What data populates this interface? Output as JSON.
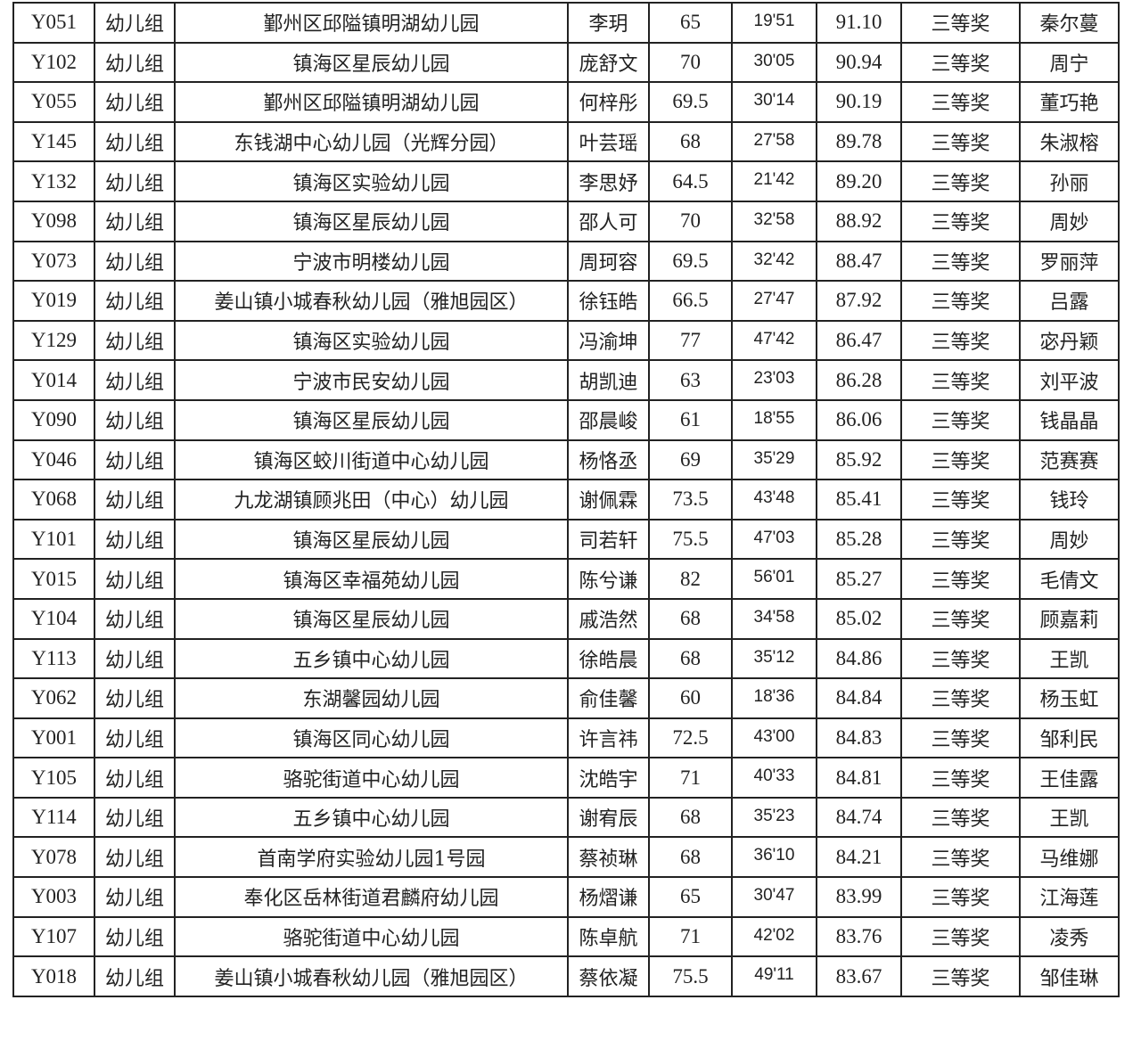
{
  "rows": [
    [
      "Y051",
      "幼儿组",
      "鄞州区邱隘镇明湖幼儿园",
      "李玥",
      "65",
      "19'51",
      "91.10",
      "三等奖",
      "秦尔蔓"
    ],
    [
      "Y102",
      "幼儿组",
      "镇海区星辰幼儿园",
      "庞舒文",
      "70",
      "30'05",
      "90.94",
      "三等奖",
      "周宁"
    ],
    [
      "Y055",
      "幼儿组",
      "鄞州区邱隘镇明湖幼儿园",
      "何梓彤",
      "69.5",
      "30'14",
      "90.19",
      "三等奖",
      "董巧艳"
    ],
    [
      "Y145",
      "幼儿组",
      "东钱湖中心幼儿园（光辉分园）",
      "叶芸瑶",
      "68",
      "27'58",
      "89.78",
      "三等奖",
      "朱淑榕"
    ],
    [
      "Y132",
      "幼儿组",
      "镇海区实验幼儿园",
      "李思妤",
      "64.5",
      "21'42",
      "89.20",
      "三等奖",
      "孙丽"
    ],
    [
      "Y098",
      "幼儿组",
      "镇海区星辰幼儿园",
      "邵人可",
      "70",
      "32'58",
      "88.92",
      "三等奖",
      "周妙"
    ],
    [
      "Y073",
      "幼儿组",
      "宁波市明楼幼儿园",
      "周珂容",
      "69.5",
      "32'42",
      "88.47",
      "三等奖",
      "罗丽萍"
    ],
    [
      "Y019",
      "幼儿组",
      "姜山镇小城春秋幼儿园（雅旭园区）",
      "徐钰皓",
      "66.5",
      "27'47",
      "87.92",
      "三等奖",
      "吕露"
    ],
    [
      "Y129",
      "幼儿组",
      "镇海区实验幼儿园",
      "冯渝坤",
      "77",
      "47'42",
      "86.47",
      "三等奖",
      "宓丹颖"
    ],
    [
      "Y014",
      "幼儿组",
      "宁波市民安幼儿园",
      "胡凯迪",
      "63",
      "23'03",
      "86.28",
      "三等奖",
      "刘平波"
    ],
    [
      "Y090",
      "幼儿组",
      "镇海区星辰幼儿园",
      "邵晨峻",
      "61",
      "18'55",
      "86.06",
      "三等奖",
      "钱晶晶"
    ],
    [
      "Y046",
      "幼儿组",
      "镇海区蛟川街道中心幼儿园",
      "杨恪丞",
      "69",
      "35'29",
      "85.92",
      "三等奖",
      "范赛赛"
    ],
    [
      "Y068",
      "幼儿组",
      "九龙湖镇顾兆田（中心）幼儿园",
      "谢佩霖",
      "73.5",
      "43'48",
      "85.41",
      "三等奖",
      "钱玲"
    ],
    [
      "Y101",
      "幼儿组",
      "镇海区星辰幼儿园",
      "司若轩",
      "75.5",
      "47'03",
      "85.28",
      "三等奖",
      "周妙"
    ],
    [
      "Y015",
      "幼儿组",
      "镇海区幸福苑幼儿园",
      "陈兮谦",
      "82",
      "56'01",
      "85.27",
      "三等奖",
      "毛倩文"
    ],
    [
      "Y104",
      "幼儿组",
      "镇海区星辰幼儿园",
      "戚浩然",
      "68",
      "34'58",
      "85.02",
      "三等奖",
      "顾嘉莉"
    ],
    [
      "Y113",
      "幼儿组",
      "五乡镇中心幼儿园",
      "徐皓晨",
      "68",
      "35'12",
      "84.86",
      "三等奖",
      "王凯"
    ],
    [
      "Y062",
      "幼儿组",
      "东湖馨园幼儿园",
      "俞佳馨",
      "60",
      "18'36",
      "84.84",
      "三等奖",
      "杨玉虹"
    ],
    [
      "Y001",
      "幼儿组",
      "镇海区同心幼儿园",
      "许言祎",
      "72.5",
      "43'00",
      "84.83",
      "三等奖",
      "邹利民"
    ],
    [
      "Y105",
      "幼儿组",
      "骆驼街道中心幼儿园",
      "沈皓宇",
      "71",
      "40'33",
      "84.81",
      "三等奖",
      "王佳露"
    ],
    [
      "Y114",
      "幼儿组",
      "五乡镇中心幼儿园",
      "谢宥辰",
      "68",
      "35'23",
      "84.74",
      "三等奖",
      "王凯"
    ],
    [
      "Y078",
      "幼儿组",
      "首南学府实验幼儿园1号园",
      "蔡祯琳",
      "68",
      "36'10",
      "84.21",
      "三等奖",
      "马维娜"
    ],
    [
      "Y003",
      "幼儿组",
      "奉化区岳林街道君麟府幼儿园",
      "杨熠谦",
      "65",
      "30'47",
      "83.99",
      "三等奖",
      "江海莲"
    ],
    [
      "Y107",
      "幼儿组",
      "骆驼街道中心幼儿园",
      "陈卓航",
      "71",
      "42'02",
      "83.76",
      "三等奖",
      "凌秀"
    ],
    [
      "Y018",
      "幼儿组",
      "姜山镇小城春秋幼儿园（雅旭园区）",
      "蔡依凝",
      "75.5",
      "49'11",
      "83.67",
      "三等奖",
      "邹佳琳"
    ]
  ]
}
